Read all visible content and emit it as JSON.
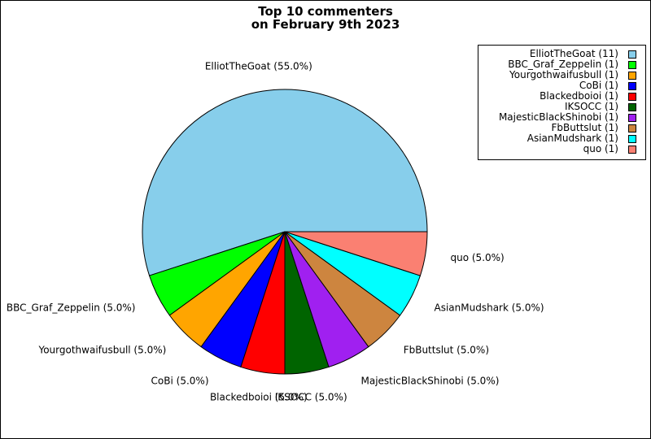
{
  "chart_data": {
    "type": "pie",
    "title_lines": [
      "Top 10 commenters",
      "on February 9th 2023"
    ],
    "slices": [
      {
        "name": "ElliotTheGoat",
        "count": 11,
        "percent": 55.0,
        "label": "ElliotTheGoat (55.0%)",
        "legend": "ElliotTheGoat (11)",
        "color": "#87ceeb"
      },
      {
        "name": "BBC_Graf_Zeppelin",
        "count": 1,
        "percent": 5.0,
        "label": "BBC_Graf_Zeppelin (5.0%)",
        "legend": "BBC_Graf_Zeppelin (1)",
        "color": "#00ff00"
      },
      {
        "name": "Yourgothwaifusbull",
        "count": 1,
        "percent": 5.0,
        "label": "Yourgothwaifusbull (5.0%)",
        "legend": "Yourgothwaifusbull (1)",
        "color": "#ffa500"
      },
      {
        "name": "CoBi",
        "count": 1,
        "percent": 5.0,
        "label": "CoBi (5.0%)",
        "legend": "CoBi (1)",
        "color": "#0000ff"
      },
      {
        "name": "Blackedboioi",
        "count": 1,
        "percent": 5.0,
        "label": "Blackedboioi (5.0%)",
        "legend": "Blackedboioi (1)",
        "color": "#ff0000"
      },
      {
        "name": "IKSOCC",
        "count": 1,
        "percent": 5.0,
        "label": "IKSOCC (5.0%)",
        "legend": "IKSOCC (1)",
        "color": "#006400"
      },
      {
        "name": "MajesticBlackShinobi",
        "count": 1,
        "percent": 5.0,
        "label": "MajesticBlackShinobi (5.0%)",
        "legend": "MajesticBlackShinobi (1)",
        "color": "#a020f0"
      },
      {
        "name": "FbButtslut",
        "count": 1,
        "percent": 5.0,
        "label": "FbButtslut (5.0%)",
        "legend": "FbButtslut (1)",
        "color": "#cd853f"
      },
      {
        "name": "AsianMudshark",
        "count": 1,
        "percent": 5.0,
        "label": "AsianMudshark (5.0%)",
        "legend": "AsianMudshark (1)",
        "color": "#00ffff"
      },
      {
        "name": "quo",
        "count": 1,
        "percent": 5.0,
        "label": "quo (5.0%)",
        "legend": "quo (1)",
        "color": "#fa8072"
      }
    ],
    "start": "3 o'clock",
    "direction": "counter-clockwise",
    "legend_position": "top-right"
  }
}
